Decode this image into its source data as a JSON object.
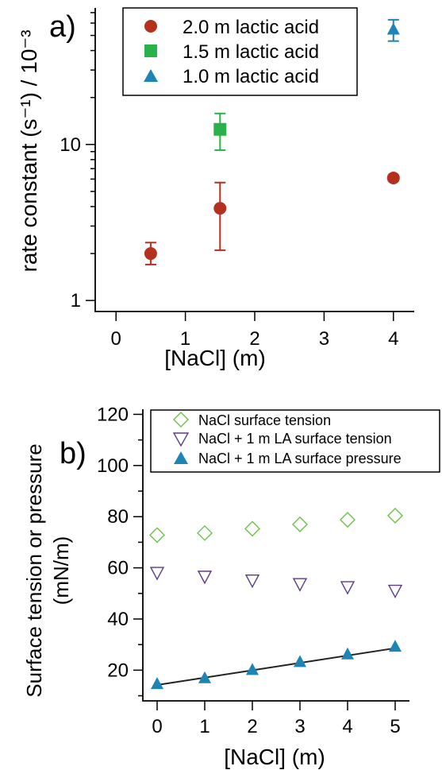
{
  "chart_data": [
    {
      "panel_label": "a)",
      "type": "scatter",
      "xlabel": "[NaCl] (m)",
      "ylabel": "rate constant (s⁻¹) / 10⁻³",
      "xlim": [
        -0.3,
        4.3
      ],
      "ylim": [
        0.85,
        75
      ],
      "yscale": "log",
      "x_ticks": [
        0,
        1,
        2,
        3,
        4
      ],
      "x_tick_labels": [
        "0",
        "1",
        "2",
        "3",
        "4"
      ],
      "y_ticks": [
        1,
        10
      ],
      "y_tick_labels": [
        "1",
        "10"
      ],
      "grid": false,
      "legend_position": "top-right",
      "series": [
        {
          "name": "2.0 m lactic acid",
          "marker": "circle",
          "color": "#b5311f",
          "points": [
            {
              "x": 0.5,
              "y": 2.0,
              "err_low": 1.7,
              "err_high": 2.35
            },
            {
              "x": 1.5,
              "y": 3.9,
              "err_low": 2.1,
              "err_high": 5.7
            },
            {
              "x": 4.0,
              "y": 6.1,
              "err_low": 5.85,
              "err_high": 6.35
            }
          ]
        },
        {
          "name": "1.5 m lactic acid",
          "marker": "square",
          "color": "#29b24a",
          "points": [
            {
              "x": 1.5,
              "y": 12.5,
              "err_low": 9.2,
              "err_high": 15.8
            }
          ]
        },
        {
          "name": "1.0 m lactic acid",
          "marker": "triangle",
          "color": "#1d84b5",
          "points": [
            {
              "x": 4.0,
              "y": 55,
              "err_low": 46,
              "err_high": 63
            }
          ]
        }
      ]
    },
    {
      "panel_label": "b)",
      "type": "scatter",
      "xlabel": "[NaCl] (m)",
      "ylabel_lines": [
        "Surface tension or pressure",
        "(mN/m)"
      ],
      "xlim": [
        -0.3,
        5.3
      ],
      "ylim": [
        8,
        122
      ],
      "x_ticks": [
        0,
        1,
        2,
        3,
        4,
        5
      ],
      "x_tick_labels": [
        "0",
        "1",
        "2",
        "3",
        "4",
        "5"
      ],
      "y_ticks": [
        20,
        40,
        60,
        80,
        100,
        120
      ],
      "y_tick_labels": [
        "20",
        "40",
        "60",
        "80",
        "100",
        "120"
      ],
      "grid": false,
      "legend_position": "top-right",
      "series": [
        {
          "name": "NaCl surface tension",
          "marker": "diamond-open",
          "color": "#6cc24a",
          "x": [
            0,
            1,
            2,
            3,
            4,
            5
          ],
          "y": [
            72.8,
            73.6,
            75.3,
            77.0,
            78.8,
            80.4
          ]
        },
        {
          "name": "NaCl + 1 m LA surface tension",
          "marker": "triangle-down-open",
          "color": "#5b3a8a",
          "x": [
            0,
            1,
            2,
            3,
            4,
            5
          ],
          "y": [
            58.0,
            56.5,
            55.0,
            53.6,
            52.4,
            51.0
          ]
        },
        {
          "name": "NaCl + 1 m LA surface pressure",
          "marker": "triangle",
          "color": "#1d84b5",
          "x": [
            0,
            1,
            2,
            3,
            4,
            5
          ],
          "y": [
            14.8,
            17.1,
            20.3,
            23.4,
            26.4,
            29.4
          ]
        }
      ],
      "fit_line": {
        "color": "#222222",
        "x": [
          0,
          5
        ],
        "y": [
          14.2,
          28.6
        ]
      }
    }
  ]
}
